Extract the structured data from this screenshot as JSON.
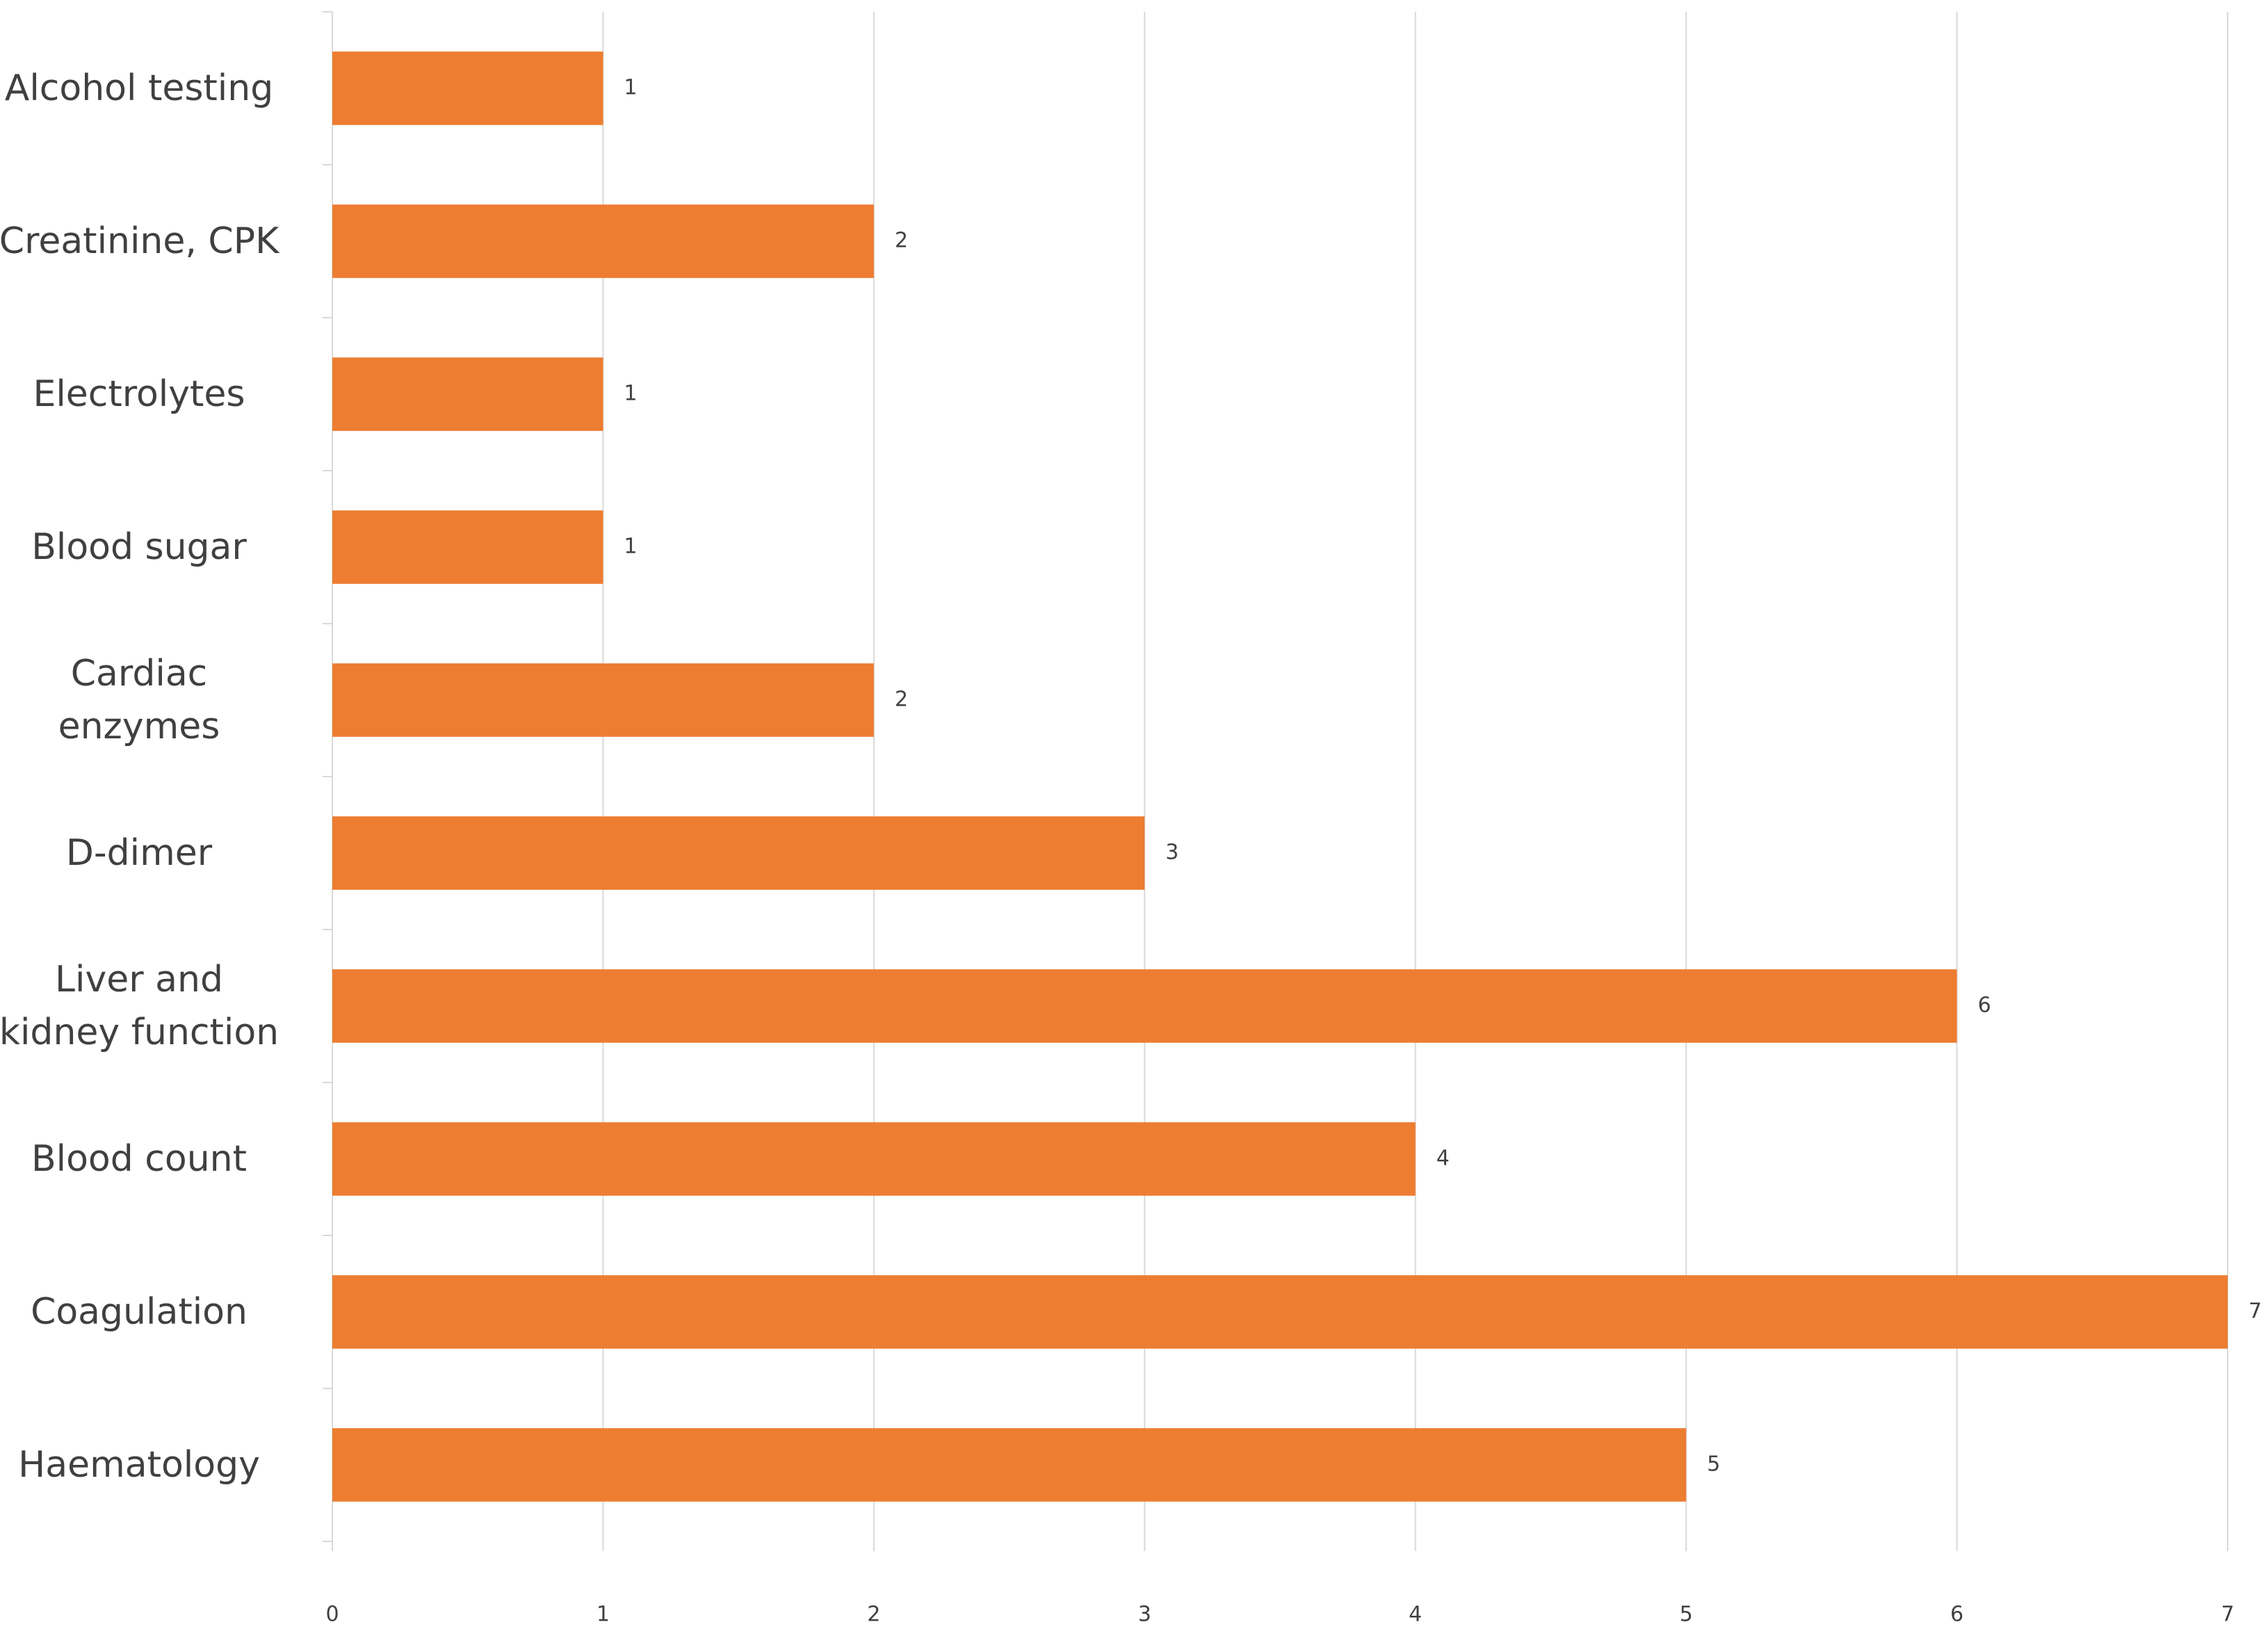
{
  "chart_data": {
    "type": "bar",
    "orientation": "horizontal",
    "categories": [
      "Alcohol testing",
      "Creatinine, CPK",
      "Electrolytes",
      "Blood sugar",
      "Cardiac\nenzymes",
      "D-dimer",
      "Liver and\nkidney function",
      "Blood count",
      "Coagulation",
      "Haematology"
    ],
    "values": [
      1,
      2,
      1,
      1,
      2,
      3,
      6,
      4,
      7,
      5
    ],
    "color": "#ed7d31",
    "xlim": [
      0,
      7
    ],
    "xticks": [
      0,
      1,
      2,
      3,
      4,
      5,
      6,
      7
    ],
    "grid": true
  }
}
